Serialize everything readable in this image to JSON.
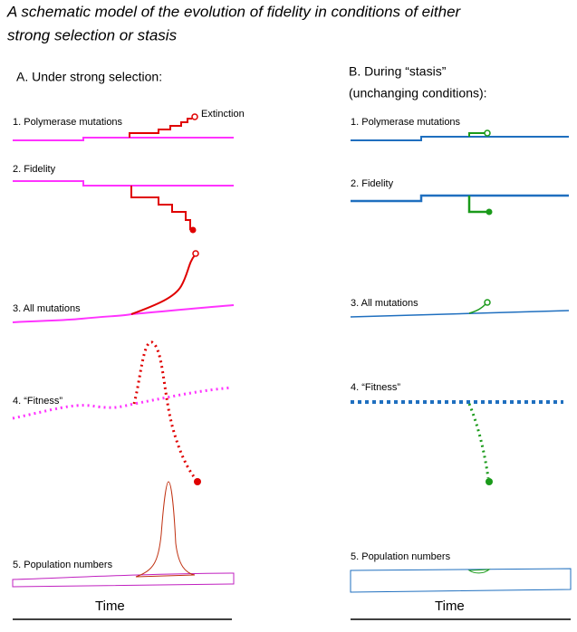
{
  "title": {
    "lines": [
      "A schematic model of the evolution of fidelity in conditions of either",
      "strong selection or stasis"
    ]
  },
  "panels": [
    {
      "heading": {
        "lines": [
          "A. Under strong selection:"
        ]
      },
      "rows": [
        "1. Polymerase mutations",
        "2. Fidelity",
        "3. All mutations",
        "4. “Fitness”",
        "5. Population numbers"
      ],
      "annotation": "Extinction",
      "axis_label": "Time"
    },
    {
      "heading": {
        "lines": [
          "B. During “stasis”",
          "(unchanging conditions):"
        ]
      },
      "rows": [
        "1. Polymerase mutations",
        "2. Fidelity",
        "3. All mutations",
        "4. “Fitness”",
        "5. Population numbers"
      ],
      "axis_label": "Time"
    }
  ]
}
